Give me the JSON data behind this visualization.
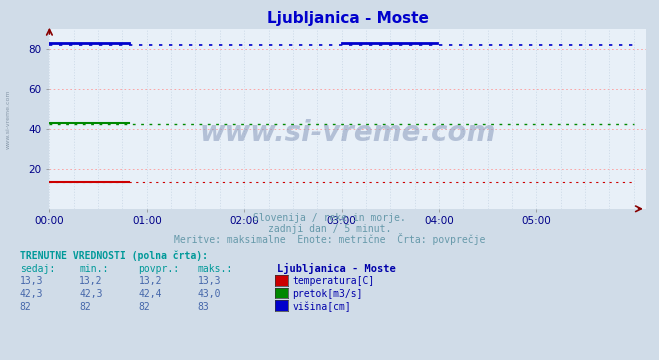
{
  "title": "Ljubljanica - Moste",
  "title_color": "#0000cc",
  "bg_color": "#d0dce8",
  "plot_bg_color": "#e8f0f8",
  "watermark": "www.si-vreme.com",
  "subtitle_lines": [
    "Slovenija / reke in morje.",
    "zadnji dan / 5 minut.",
    "Meritve: maksimalne  Enote: metrične  Črta: povprečje"
  ],
  "subtitle_color": "#6699aa",
  "xlabel_color": "#000088",
  "ylabel_color": "#000088",
  "xmin": 0,
  "xmax": 288,
  "ymin": 0,
  "ymax": 90,
  "yticks": [
    20,
    40,
    60,
    80
  ],
  "xtick_labels": [
    "00:00",
    "01:00",
    "02:00",
    "03:00",
    "04:00",
    "05:00"
  ],
  "xtick_positions": [
    0,
    48,
    96,
    144,
    192,
    240
  ],
  "grid_color_h": "#ff9999",
  "grid_color_v": "#bbccdd",
  "temp_value": 13.3,
  "temp_min": 13.2,
  "temp_avg": 13.2,
  "temp_max": 13.3,
  "pretok_value": 42.3,
  "pretok_min": 42.3,
  "pretok_avg": 42.4,
  "pretok_max": 43.0,
  "visina_value": 82,
  "visina_min": 82,
  "visina_avg": 82,
  "visina_max": 83,
  "temp_color": "#cc0000",
  "pretok_color": "#008800",
  "visina_color": "#0000cc",
  "table_header_color": "#009999",
  "table_value_color": "#4466aa",
  "table_label_color": "#0000aa",
  "left_label": "www.si-vreme.com",
  "left_label_color": "#8899aa",
  "arrow_color": "#880000"
}
